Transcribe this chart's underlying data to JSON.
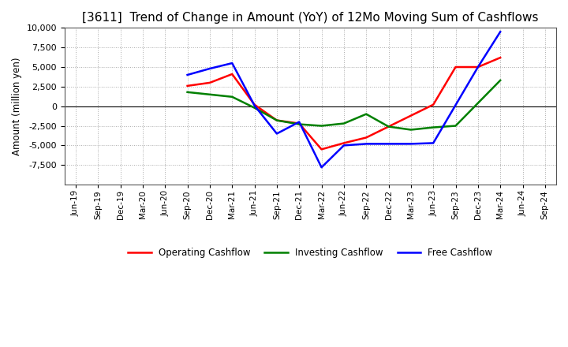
{
  "title": "[3611]  Trend of Change in Amount (YoY) of 12Mo Moving Sum of Cashflows",
  "ylabel": "Amount (million yen)",
  "x_labels": [
    "Jun-19",
    "Sep-19",
    "Dec-19",
    "Mar-20",
    "Jun-20",
    "Sep-20",
    "Dec-20",
    "Mar-21",
    "Jun-21",
    "Sep-21",
    "Dec-21",
    "Mar-22",
    "Jun-22",
    "Sep-22",
    "Dec-22",
    "Mar-23",
    "Jun-23",
    "Sep-23",
    "Dec-23",
    "Mar-24",
    "Jun-24",
    "Sep-24"
  ],
  "operating_x": [
    5,
    6,
    7,
    8,
    9,
    10,
    11,
    12,
    13,
    14,
    15,
    16,
    17,
    18,
    19
  ],
  "operating_y": [
    2600,
    3000,
    4100,
    200,
    -1800,
    -2200,
    -5500,
    -4700,
    -4000,
    -2600,
    -1200,
    200,
    5000,
    5000,
    6200
  ],
  "investing_x": [
    5,
    6,
    7,
    8,
    9,
    10,
    11,
    12,
    13,
    14,
    15,
    16,
    17,
    19
  ],
  "investing_y": [
    1800,
    1500,
    1200,
    -200,
    -1800,
    -2300,
    -2500,
    -2200,
    -1000,
    -2600,
    -3000,
    -2700,
    -2500,
    3300
  ],
  "free_x": [
    5,
    6,
    7,
    8,
    9,
    10,
    11,
    12,
    13,
    14,
    15,
    16,
    18,
    19
  ],
  "free_y": [
    4000,
    4800,
    5500,
    100,
    -3500,
    -2000,
    -7800,
    -5000,
    -4800,
    -4800,
    -4800,
    -4700,
    5000,
    9500
  ],
  "ylim": [
    -10000,
    10000
  ],
  "yticks": [
    -7500,
    -5000,
    -2500,
    0,
    2500,
    5000,
    7500,
    10000
  ],
  "operating_color": "#ff0000",
  "investing_color": "#008000",
  "free_color": "#0000ff",
  "line_width": 1.8,
  "bg_color": "#ffffff",
  "grid_color": "#aaaaaa",
  "title_fontsize": 11
}
